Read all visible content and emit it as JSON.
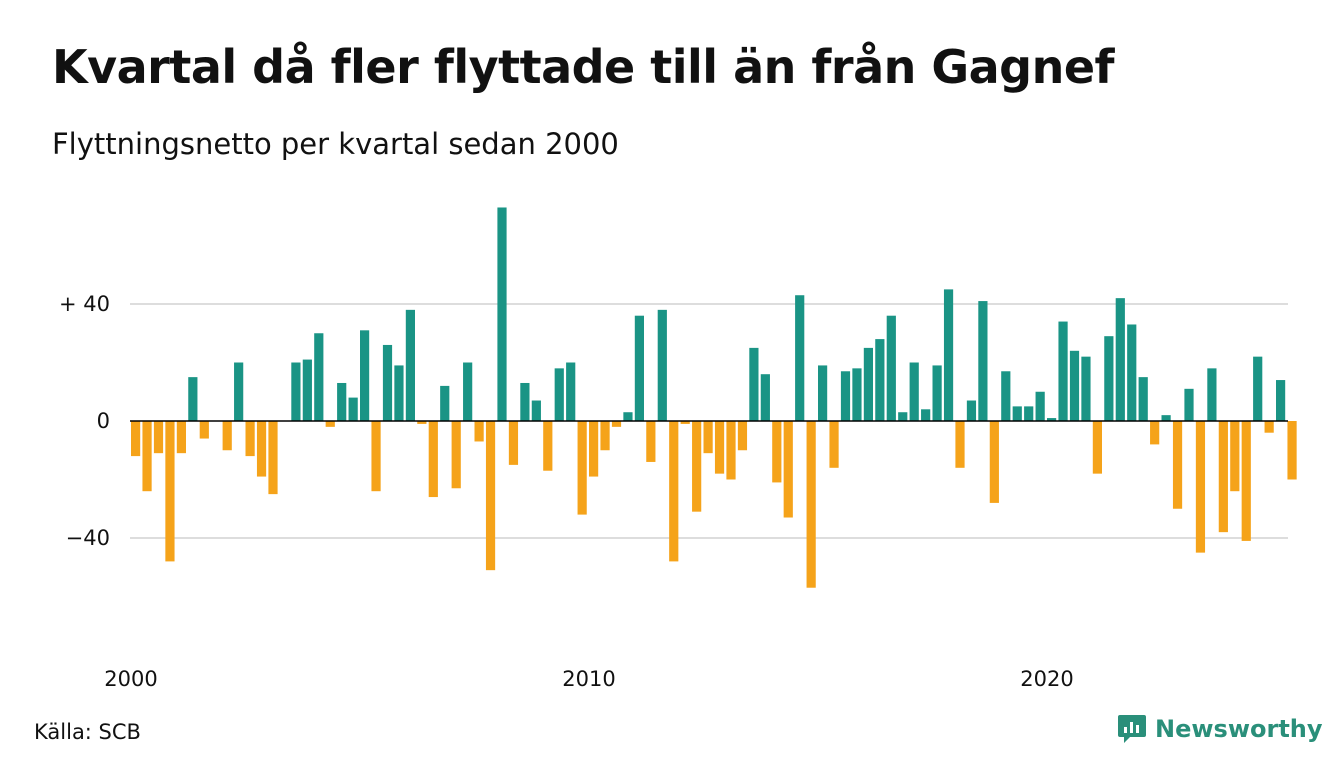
{
  "header": {
    "title": "Kvartal då fler flyttade till än från Gagnef",
    "subtitle": "Flyttningsnetto per kvartal sedan 2000"
  },
  "footer": {
    "source": "Källa: SCB",
    "brand": "Newsworthy"
  },
  "colors": {
    "positive": "#1a9485",
    "negative": "#f5a31a",
    "grid": "#dddddd",
    "baseline": "#000000",
    "brand": "#2a8f7a"
  },
  "chart_data": {
    "type": "bar",
    "title": "Kvartal då fler flyttade till än från Gagnef",
    "subtitle": "Flyttningsnetto per kvartal sedan 2000",
    "xlabel": "",
    "ylabel": "",
    "x_start": "2000 Q1",
    "ylim": [
      -80,
      80
    ],
    "yticks": [
      {
        "value": 40,
        "label": "+ 40"
      },
      {
        "value": 0,
        "label": "0"
      },
      {
        "value": -40,
        "label": "−40"
      }
    ],
    "xticks": [
      "2000",
      "2010",
      "2020"
    ],
    "grid": true,
    "legend": "none",
    "values": [
      -12,
      -24,
      -11,
      -48,
      -11,
      15,
      -6,
      0,
      -10,
      20,
      -12,
      -19,
      -25,
      0,
      20,
      21,
      30,
      -2,
      13,
      8,
      31,
      -24,
      26,
      19,
      38,
      -1,
      -26,
      12,
      -23,
      20,
      -7,
      -51,
      73,
      -15,
      13,
      7,
      -17,
      18,
      20,
      -32,
      -19,
      -10,
      -2,
      3,
      36,
      -14,
      38,
      -48,
      -1,
      -31,
      -11,
      -18,
      -20,
      -10,
      25,
      16,
      -21,
      -33,
      43,
      -57,
      19,
      -16,
      17,
      18,
      25,
      28,
      36,
      3,
      20,
      4,
      19,
      45,
      -16,
      7,
      41,
      -28,
      17,
      5,
      5,
      10,
      1,
      34,
      24,
      22,
      -18,
      29,
      42,
      33,
      15,
      -8,
      2,
      -30,
      11,
      -45,
      18,
      -38,
      -24,
      -41,
      22,
      -4,
      14,
      -20
    ]
  }
}
